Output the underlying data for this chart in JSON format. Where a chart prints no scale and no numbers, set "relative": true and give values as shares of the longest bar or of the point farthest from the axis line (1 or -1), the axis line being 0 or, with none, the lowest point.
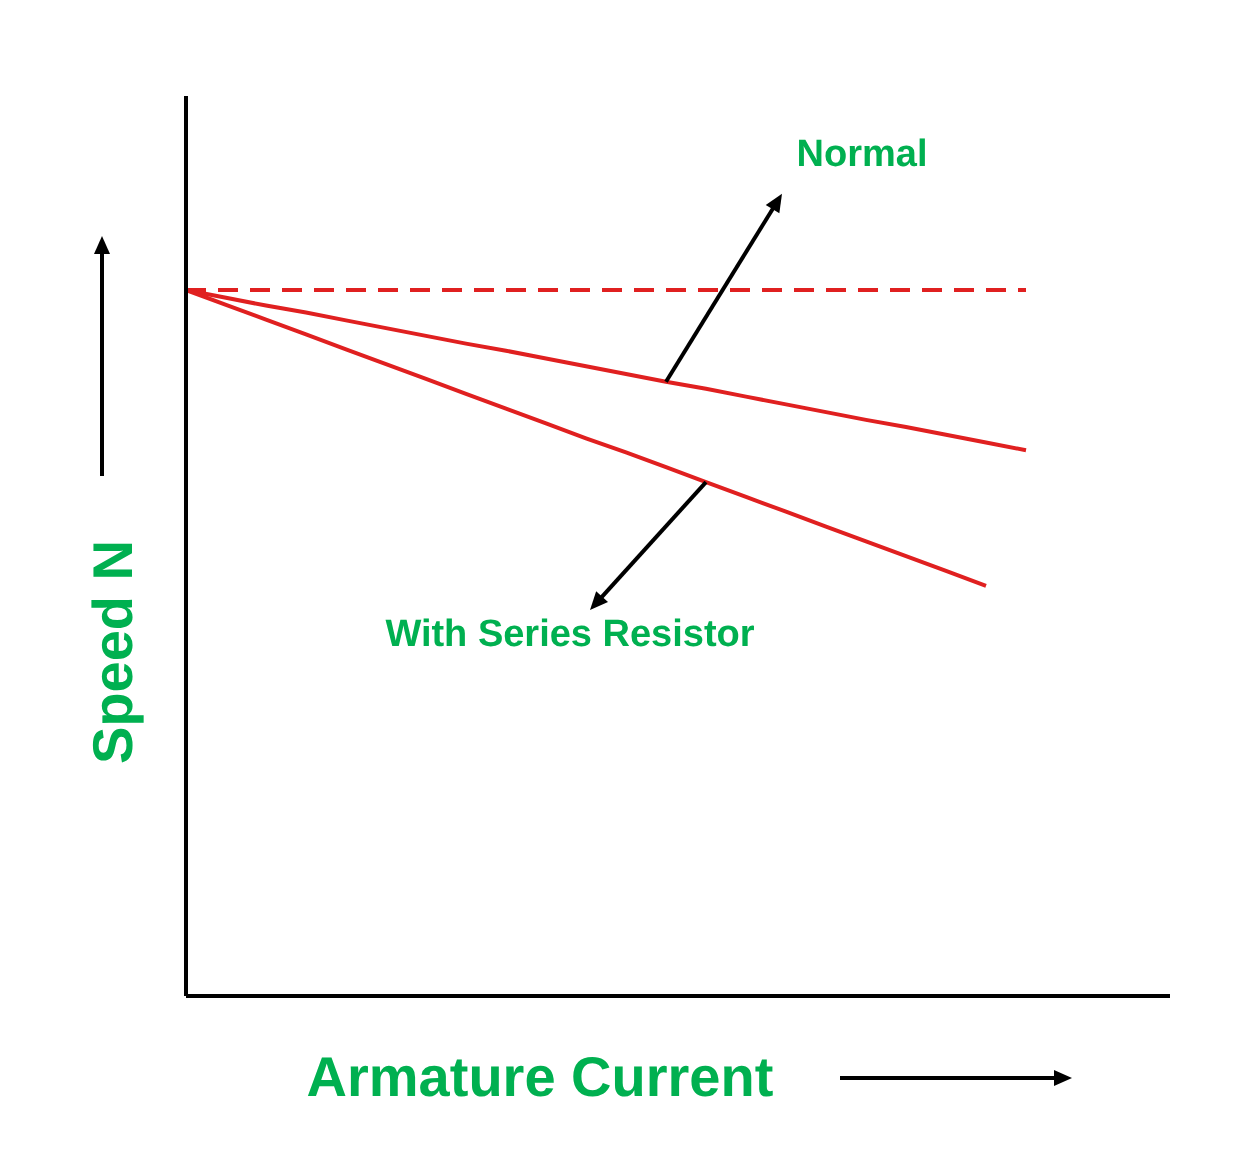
{
  "chart_data": {
    "type": "line",
    "relative": true,
    "xlabel": "Armature Current",
    "ylabel": "Speed N",
    "categories": [
      null,
      null,
      null,
      null,
      null,
      null,
      null,
      null,
      null,
      null,
      null,
      null,
      null,
      null,
      null,
      null,
      null,
      null,
      null,
      null,
      null,
      null,
      null,
      null,
      null
    ],
    "series": [
      {
        "color": "#e02020",
        "line_style": "dashed",
        "values": [
          1,
          1,
          1,
          1,
          1,
          1,
          1,
          1,
          1,
          1,
          1,
          1,
          1,
          1,
          1,
          1,
          1,
          1,
          1,
          1,
          1,
          1,
          null,
          null,
          null
        ]
      },
      {
        "color": "#e02020",
        "line_style": "solid",
        "values": [
          1,
          0.989,
          0.978,
          0.968,
          0.957,
          0.946,
          0.935,
          0.924,
          0.914,
          0.903,
          0.892,
          0.881,
          0.87,
          0.86,
          0.849,
          0.838,
          0.827,
          0.816,
          0.806,
          0.795,
          0.784,
          0.773,
          null,
          null,
          null
        ]
      },
      {
        "color": "#e02020",
        "line_style": "solid",
        "values": [
          1,
          0.979,
          0.958,
          0.937,
          0.916,
          0.895,
          0.874,
          0.853,
          0.832,
          0.811,
          0.79,
          0.77,
          0.749,
          0.728,
          0.707,
          0.686,
          0.665,
          0.644,
          0.623,
          0.602,
          0.581,
          null,
          null,
          null,
          null
        ]
      }
    ],
    "annotations": [
      "Normal",
      "With Series Resistor"
    ]
  }
}
